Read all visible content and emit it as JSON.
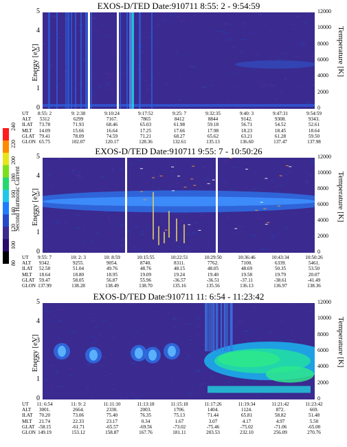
{
  "colorbar": {
    "title": "Second Harmonic Current",
    "ticks": [
      "80",
      "100",
      "120",
      "140",
      "160",
      "180",
      "200",
      "220",
      "240"
    ],
    "colors": [
      "#000000",
      "#2a0a6a",
      "#3b2a8f",
      "#2548c8",
      "#1f7cff",
      "#20c8e8",
      "#22d970",
      "#7be01b",
      "#e6e61a",
      "#ff8c00",
      "#ff1c1c"
    ]
  },
  "chart_data": [
    {
      "type": "heatmap",
      "title": "EXOS-D/TED   Date:910711   8:55: 2 - 9:54:59",
      "ylabel": "Energy [eV]",
      "y2label": "Temperature [K]",
      "ylim": [
        0,
        5
      ],
      "yticks": [
        "0",
        "1",
        "2",
        "3",
        "4",
        "5"
      ],
      "y2lim": [
        0,
        12000
      ],
      "y2ticks": [
        "0",
        "2000",
        "4000",
        "6000",
        "8000",
        "10000",
        "12000"
      ],
      "ephemeris": [
        {
          "name": "UT",
          "values": [
            "8:55: 2",
            "9: 2:38",
            "9:10:24",
            "9:17:52",
            "9:25: 7",
            "9:32:35",
            "9:40: 3",
            "9:47:31",
            "9:54:59"
          ]
        },
        {
          "name": "ALT",
          "values": [
            "5312",
            "6299",
            "7167.",
            "7865",
            "8412",
            "8844",
            "9142.",
            "9308.",
            "9343."
          ]
        },
        {
          "name": "ILAT",
          "values": [
            "73.78",
            "71.93",
            "68.46",
            "65.03",
            "61.98",
            "59.18",
            "56.71",
            "54.52",
            "52.61"
          ]
        },
        {
          "name": "MLT",
          "values": [
            "14.09",
            "15.66",
            "16.64",
            "17.25",
            "17.66",
            "17.98",
            "18.23",
            "18.45",
            "18.64"
          ]
        },
        {
          "name": "GLAT",
          "values": [
            "79.41",
            "78.09",
            "74.59",
            "71.21",
            "68.27",
            "65.62",
            "63.21",
            "61.28",
            "59.50"
          ]
        },
        {
          "name": "GLON",
          "values": [
            "65.75",
            "102.07",
            "120.17",
            "128.36",
            "132.61",
            "135.13",
            "136.60",
            "137.47",
            "137.98"
          ]
        }
      ]
    },
    {
      "type": "heatmap",
      "title": "EXOS-D/TED   Date:910711   9:55: 7 - 10:50:26",
      "ylabel": "Energy [eV]",
      "y2label": "Temperature [K]",
      "ylim": [
        0,
        5
      ],
      "yticks": [
        "0",
        "1",
        "2",
        "3",
        "4",
        "5"
      ],
      "y2lim": [
        0,
        12000
      ],
      "y2ticks": [
        "0",
        "2000",
        "4000",
        "6000",
        "8000",
        "10000",
        "12000"
      ],
      "ephemeris": [
        {
          "name": "UT",
          "values": [
            "9:55: 7",
            "10: 2: 3",
            "10: 8:59",
            "10:15:55",
            "10:22:51",
            "10:29:50",
            "10:36:46",
            "10:43:34",
            "10:50:26"
          ]
        },
        {
          "name": "ALT",
          "values": [
            "9342.",
            "9255.",
            "9054.",
            "8740.",
            "8311.",
            "7762.",
            "7100.",
            "6339.",
            "5461."
          ]
        },
        {
          "name": "ILAT",
          "values": [
            "52.58",
            "51.04",
            "49.76",
            "48.76",
            "48.15",
            "48.05",
            "48.69",
            "50.35",
            "53.50"
          ]
        },
        {
          "name": "MLT",
          "values": [
            "18.64",
            "18.80",
            "18.95",
            "19.09",
            "19.24",
            "19.40",
            "19.58",
            "19.79",
            "20.07"
          ]
        },
        {
          "name": "GLAT",
          "values": [
            "59.47",
            "58.05",
            "56.87",
            "55.96",
            "-36.57",
            "-36.51",
            "-37.11",
            "-38.61",
            "-41.49"
          ]
        },
        {
          "name": "GLON",
          "values": [
            "137.99",
            "138.28",
            "138.49",
            "138.70",
            "135.16",
            "135.56",
            "136.13",
            "136.97",
            "138.36"
          ]
        }
      ]
    },
    {
      "type": "heatmap",
      "title": "EXOS-D/TED   Date:910711   11: 6:54 - 11:23:42",
      "ylabel": "Energy [eV]",
      "y2label": "Temperature [K]",
      "ylim": [
        0,
        5
      ],
      "yticks": [
        "0",
        "1",
        "2",
        "3",
        "4",
        "5"
      ],
      "y2lim": [
        0,
        12000
      ],
      "y2ticks": [
        "0",
        "2000",
        "4000",
        "6000",
        "8000",
        "10000",
        "12000"
      ],
      "ephemeris": [
        {
          "name": "UT",
          "values": [
            "11: 6:54",
            "11: 9: 2",
            "11:11:10",
            "11:13:18",
            "11:15:18",
            "11:17:26",
            "11:19:34",
            "11:21:42",
            "11:23:42"
          ]
        },
        {
          "name": "ALT",
          "values": [
            "3001.",
            "2664.",
            "2330.",
            "2003.",
            "1706.",
            "1404.",
            "1124.",
            "872.",
            "669."
          ]
        },
        {
          "name": "ILAT",
          "values": [
            "70.20",
            "73.06",
            "75.40",
            "76.35",
            "75.13",
            "71.44",
            "65.81",
            "58.82",
            "51.48"
          ]
        },
        {
          "name": "MLT",
          "values": [
            "21.74",
            "22.33",
            "23.17",
            "0.34",
            "1.67",
            "3.07",
            "4.17",
            "4.97",
            "5.50"
          ]
        },
        {
          "name": "GLAT",
          "values": [
            "-58.15",
            "-61.71",
            "-65.57",
            "-69.56",
            "-73.02",
            "-75.46",
            "-75.02",
            "-71.06",
            "-65.00"
          ]
        },
        {
          "name": "GLON",
          "values": [
            "149.19",
            "153.12",
            "158.87",
            "167.76",
            "181.11",
            "203.53",
            "232.10",
            "256.09",
            "270.76"
          ]
        }
      ]
    }
  ]
}
